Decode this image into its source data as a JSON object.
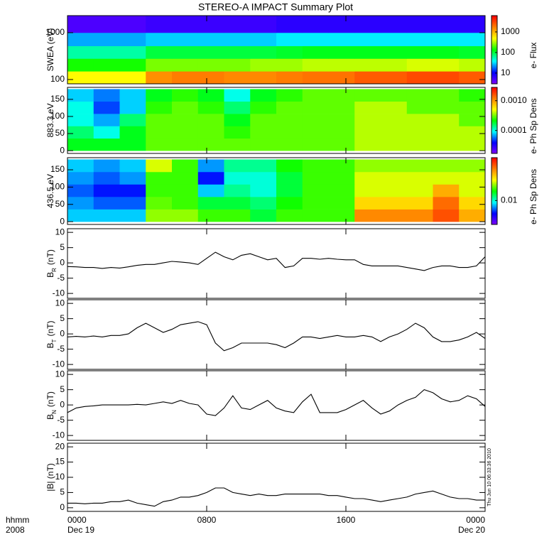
{
  "chart_data": [
    {
      "type": "heatmap",
      "title": "STEREO-A IMPACT Summary Plot",
      "ylabel": "SWEA (eV)",
      "ylog": true,
      "ylim": [
        81,
        2310
      ],
      "yticks": [
        100,
        1000
      ],
      "xlim": [
        0,
        24
      ],
      "xticks": [
        0,
        8,
        16,
        24
      ],
      "xbins": [
        0,
        1.5,
        3,
        4.5,
        6,
        7.5,
        9,
        10.5,
        12,
        13.5,
        15,
        16.5,
        18,
        19.5,
        21,
        22.5,
        24
      ],
      "ybins": [
        81,
        150,
        280,
        520,
        1000,
        2310
      ],
      "z": [
        [
          500,
          500,
          500,
          1500,
          1800,
          1800,
          1600,
          1600,
          1800,
          2000,
          2000,
          2500,
          2500,
          3000,
          3000,
          2500
        ],
        [
          150,
          150,
          150,
          250,
          250,
          250,
          250,
          300,
          300,
          350,
          350,
          350,
          350,
          400,
          400,
          350
        ],
        [
          60,
          60,
          60,
          100,
          100,
          100,
          100,
          100,
          110,
          120,
          120,
          120,
          120,
          120,
          120,
          110
        ],
        [
          25,
          25,
          25,
          30,
          30,
          30,
          30,
          30,
          35,
          35,
          35,
          35,
          35,
          35,
          35,
          35
        ],
        [
          5,
          5,
          5,
          6,
          6,
          6,
          6,
          6,
          7,
          7,
          7,
          7,
          7,
          7,
          7,
          7
        ]
      ],
      "zlog": true,
      "zlim": [
        3,
        6200
      ],
      "zticks": [
        10,
        100,
        1000
      ],
      "zlabel": "e- Flux",
      "colormap": [
        "#7f00ff",
        "#0000ff",
        "#00ffff",
        "#00ff00",
        "#ffff00",
        "#ff8000",
        "#ff0000"
      ]
    },
    {
      "type": "heatmap",
      "ylabel": "883.3 eV",
      "ylim": [
        -8,
        185
      ],
      "yticks": [
        0,
        50,
        100,
        150
      ],
      "xlim": [
        0,
        24
      ],
      "xticks": [
        0,
        8,
        16,
        24
      ],
      "xbins": [
        0,
        1.5,
        3,
        4.5,
        6,
        7.5,
        9,
        10.5,
        12,
        13.5,
        15,
        16.5,
        18,
        19.5,
        21,
        22.5,
        24
      ],
      "ybins": [
        0,
        36,
        72,
        108,
        144,
        180
      ],
      "z": [
        [
          0.0002,
          0.0002,
          0.0002,
          0.0003,
          0.0003,
          0.0003,
          0.0003,
          0.0003,
          0.0003,
          0.0003,
          0.0003,
          0.0004,
          0.0004,
          0.0004,
          0.0004,
          0.0004
        ],
        [
          0.00015,
          0.0001,
          0.0002,
          0.0003,
          0.0003,
          0.0003,
          0.00025,
          0.0003,
          0.0003,
          0.0003,
          0.0003,
          0.0004,
          0.0004,
          0.0004,
          0.0004,
          0.0004
        ],
        [
          0.0001,
          7e-05,
          0.00015,
          0.0003,
          0.0003,
          0.0003,
          0.0002,
          0.0003,
          0.0003,
          0.0003,
          0.0003,
          0.0004,
          0.0004,
          0.0004,
          0.0004,
          0.0003
        ],
        [
          0.0001,
          5e-05,
          8e-05,
          0.00025,
          0.0003,
          0.00025,
          0.00015,
          0.00025,
          0.0003,
          0.0003,
          0.0003,
          0.0004,
          0.0004,
          0.0003,
          0.0003,
          0.0003
        ],
        [
          8e-05,
          6e-05,
          8e-05,
          0.0002,
          0.00025,
          0.0002,
          0.0001,
          0.0002,
          0.00025,
          0.0003,
          0.0003,
          0.0003,
          0.0003,
          0.0003,
          0.0003,
          0.00025
        ]
      ],
      "zlog": true,
      "zlim": [
        1.7e-05,
        0.0028
      ],
      "zticks": [
        {
          "value": 0.001,
          "label": "0.0010"
        },
        0.0001
      ],
      "zlabel": "e- Ph Sp Dens",
      "colormap": [
        "#7f00ff",
        "#0000ff",
        "#00ffff",
        "#00ff00",
        "#ffff00",
        "#ff8000",
        "#ff0000"
      ]
    },
    {
      "type": "heatmap",
      "ylabel": "436.5 eV",
      "ylim": [
        -8,
        185
      ],
      "yticks": [
        0,
        50,
        100,
        150
      ],
      "xlim": [
        0,
        24
      ],
      "xticks": [
        0,
        8,
        16,
        24
      ],
      "xbins": [
        0,
        1.5,
        3,
        4.5,
        6,
        7.5,
        9,
        10.5,
        12,
        13.5,
        15,
        16.5,
        18,
        19.5,
        21,
        22.5,
        24
      ],
      "ybins": [
        0,
        36,
        72,
        108,
        144,
        180
      ],
      "z": [
        [
          0.008,
          0.008,
          0.008,
          0.025,
          0.025,
          0.02,
          0.02,
          0.015,
          0.02,
          0.02,
          0.02,
          0.06,
          0.06,
          0.06,
          0.08,
          0.05
        ],
        [
          0.007,
          0.006,
          0.006,
          0.022,
          0.02,
          0.015,
          0.015,
          0.013,
          0.018,
          0.02,
          0.02,
          0.04,
          0.04,
          0.04,
          0.07,
          0.04
        ],
        [
          0.006,
          0.005,
          0.005,
          0.02,
          0.02,
          0.008,
          0.012,
          0.01,
          0.015,
          0.02,
          0.02,
          0.03,
          0.03,
          0.03,
          0.05,
          0.03
        ],
        [
          0.007,
          0.006,
          0.007,
          0.02,
          0.02,
          0.005,
          0.01,
          0.01,
          0.015,
          0.02,
          0.02,
          0.03,
          0.03,
          0.03,
          0.03,
          0.03
        ],
        [
          0.008,
          0.007,
          0.008,
          0.03,
          0.02,
          0.007,
          0.012,
          0.012,
          0.018,
          0.02,
          0.02,
          0.025,
          0.025,
          0.025,
          0.025,
          0.025
        ]
      ],
      "zlog": true,
      "zlim": [
        0.0025,
        0.12
      ],
      "zticks": [
        0.01
      ],
      "zlabel": "e- Ph Sp Dens",
      "colormap": [
        "#7f00ff",
        "#0000ff",
        "#00ffff",
        "#00ff00",
        "#ffff00",
        "#ff8000",
        "#ff0000"
      ]
    },
    {
      "type": "line",
      "ylabel": "B",
      "ylabel_sub": "R",
      "ylabel_unit": "(nT)",
      "color": "#000000",
      "ylim": [
        -11.6,
        11.2
      ],
      "yticks": [
        -10,
        -5,
        0,
        5,
        10
      ],
      "xlim": [
        0,
        24
      ],
      "xticks": [
        0,
        8,
        16,
        24
      ],
      "x": [
        0,
        0.5,
        1,
        1.5,
        2,
        2.5,
        3,
        3.5,
        4,
        4.5,
        5,
        5.5,
        6,
        6.5,
        7,
        7.5,
        8,
        8.5,
        9,
        9.5,
        10,
        10.5,
        11,
        11.5,
        12,
        12.5,
        13,
        13.5,
        14,
        14.5,
        15,
        15.5,
        16,
        16.5,
        17,
        17.5,
        18,
        18.5,
        19,
        19.5,
        20,
        20.5,
        21,
        21.5,
        22,
        22.5,
        23,
        23.5,
        24
      ],
      "values": [
        -1.2,
        -1.3,
        -1.5,
        -1.5,
        -1.8,
        -1.5,
        -1.7,
        -1.3,
        -0.8,
        -0.5,
        -0.5,
        0,
        0.5,
        0.3,
        0,
        -0.5,
        1.5,
        3.5,
        2,
        1,
        2.5,
        3,
        2,
        1,
        1.5,
        -1.5,
        -1,
        1.5,
        1.5,
        1.2,
        1.5,
        1.2,
        1,
        1,
        -0.5,
        -1,
        -1,
        -1,
        -1,
        -1.5,
        -2,
        -2.5,
        -1.5,
        -1,
        -1,
        -1.5,
        -1.5,
        -1,
        2
      ]
    },
    {
      "type": "line",
      "ylabel": "B",
      "ylabel_sub": "T",
      "ylabel_unit": "(nT)",
      "color": "#000000",
      "ylim": [
        -11.6,
        11.2
      ],
      "yticks": [
        -10,
        -5,
        0,
        5,
        10
      ],
      "xlim": [
        0,
        24
      ],
      "xticks": [
        0,
        8,
        16,
        24
      ],
      "x": [
        0,
        0.5,
        1,
        1.5,
        2,
        2.5,
        3,
        3.5,
        4,
        4.5,
        5,
        5.5,
        6,
        6.5,
        7,
        7.5,
        8,
        8.5,
        9,
        9.5,
        10,
        10.5,
        11,
        11.5,
        12,
        12.5,
        13,
        13.5,
        14,
        14.5,
        15,
        15.5,
        16,
        16.5,
        17,
        17.5,
        18,
        18.5,
        19,
        19.5,
        20,
        20.5,
        21,
        21.5,
        22,
        22.5,
        23,
        23.5,
        24
      ],
      "values": [
        -1,
        -0.8,
        -1,
        -0.7,
        -1,
        -0.5,
        -0.5,
        0,
        2,
        3.5,
        2,
        0.5,
        1.5,
        3,
        3.5,
        4,
        3,
        -3,
        -5.5,
        -4.5,
        -3,
        -3,
        -3,
        -3,
        -3.5,
        -4.5,
        -3,
        -1,
        -1,
        -1.5,
        -1,
        -0.5,
        -1,
        -1,
        -0.5,
        -1,
        -2.5,
        -1,
        0,
        1.5,
        3.5,
        2,
        -1,
        -2.5,
        -2.5,
        -2,
        -1,
        0.5,
        -1.5
      ]
    },
    {
      "type": "line",
      "ylabel": "B",
      "ylabel_sub": "N",
      "ylabel_unit": "(nT)",
      "color": "#000000",
      "ylim": [
        -11.6,
        11.2
      ],
      "yticks": [
        -10,
        -5,
        0,
        5,
        10
      ],
      "xlim": [
        0,
        24
      ],
      "xticks": [
        0,
        8,
        16,
        24
      ],
      "x": [
        0,
        0.5,
        1,
        1.5,
        2,
        2.5,
        3,
        3.5,
        4,
        4.5,
        5,
        5.5,
        6,
        6.5,
        7,
        7.5,
        8,
        8.5,
        9,
        9.5,
        10,
        10.5,
        11,
        11.5,
        12,
        12.5,
        13,
        13.5,
        14,
        14.5,
        15,
        15.5,
        16,
        16.5,
        17,
        17.5,
        18,
        18.5,
        19,
        19.5,
        20,
        20.5,
        21,
        21.5,
        22,
        22.5,
        23,
        23.5,
        24
      ],
      "values": [
        -2.5,
        -1,
        -0.5,
        -0.3,
        0,
        0,
        0,
        0,
        0.2,
        0,
        0.5,
        1,
        0.5,
        1.5,
        0.5,
        0,
        -3,
        -3.5,
        -1,
        3,
        -1,
        -1.5,
        0,
        1.5,
        -1,
        -2,
        -2.5,
        1,
        3.5,
        -2.5,
        -2.5,
        -2.5,
        -1.5,
        0,
        1.5,
        -1,
        -3,
        -2,
        0,
        1.5,
        2.5,
        5,
        4,
        2,
        1,
        1.5,
        3,
        2,
        -0.5
      ]
    },
    {
      "type": "line",
      "ylabel": "|B| (nT)",
      "color": "#000000",
      "ylim": [
        -1.2,
        21.2
      ],
      "yticks": [
        0,
        5,
        10,
        15,
        20
      ],
      "xlim": [
        0,
        24
      ],
      "xticks": [
        {
          "value": 0,
          "label": "0000"
        },
        {
          "value": 8,
          "label": "0800"
        },
        {
          "value": 16,
          "label": "1600"
        },
        {
          "value": 24,
          "label": "0000"
        }
      ],
      "date_labels": [
        {
          "value": 0,
          "label": "Dec 19"
        },
        {
          "value": 24,
          "label": "Dec 20"
        }
      ],
      "xlabel": "hhmm",
      "xlabel_year": "2008",
      "annotation": "Thu Jun 10 06:33:36 2010",
      "x": [
        0,
        0.5,
        1,
        1.5,
        2,
        2.5,
        3,
        3.5,
        4,
        4.5,
        5,
        5.5,
        6,
        6.5,
        7,
        7.5,
        8,
        8.5,
        9,
        9.5,
        10,
        10.5,
        11,
        11.5,
        12,
        12.5,
        13,
        13.5,
        14,
        14.5,
        15,
        15.5,
        16,
        16.5,
        17,
        17.5,
        18,
        18.5,
        19,
        19.5,
        20,
        20.5,
        21,
        21.5,
        22,
        22.5,
        23,
        23.5,
        24
      ],
      "values": [
        1.5,
        1.5,
        1.3,
        1.5,
        1.5,
        2,
        2,
        2.5,
        1.5,
        1,
        0.5,
        2,
        2.5,
        3.5,
        3.5,
        4,
        5,
        6.5,
        6.5,
        5,
        4.5,
        4,
        4.5,
        4,
        4,
        4.5,
        4.5,
        4.5,
        4.5,
        4.5,
        4,
        4,
        3.5,
        3,
        3,
        2.5,
        2,
        2.5,
        3,
        3.5,
        4.5,
        5,
        5.5,
        4.5,
        3.5,
        3,
        3,
        2.5,
        2.5
      ]
    }
  ]
}
